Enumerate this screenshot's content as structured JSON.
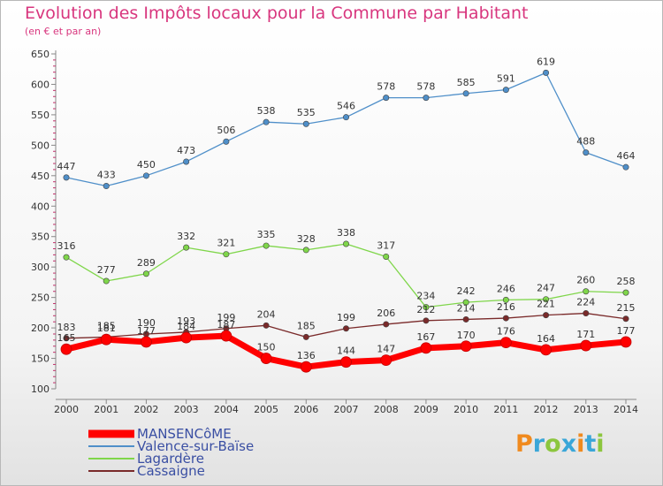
{
  "title": "Evolution des Impôts locaux pour la Commune par Habitant",
  "subtitle": "(en € et par an)",
  "logo": {
    "text": "Proxiti",
    "colors": [
      "#f08a1e",
      "#3aa6d8",
      "#8cc63e",
      "#3aa6d8",
      "#f08a1e",
      "#3aa6d8",
      "#8cc63e"
    ]
  },
  "chart_data": {
    "type": "line",
    "x": [
      "2000",
      "2001",
      "2002",
      "2003",
      "2004",
      "2005",
      "2006",
      "2007",
      "2008",
      "2009",
      "2010",
      "2011",
      "2012",
      "2013",
      "2014"
    ],
    "ylim": [
      100,
      650
    ],
    "yticks": [
      100,
      150,
      200,
      250,
      300,
      350,
      400,
      450,
      500,
      550,
      600,
      650
    ],
    "grid": false,
    "legend_position": "bottom-left",
    "series": [
      {
        "name": "MANSENCôME",
        "color": "#ff0000",
        "emphasis": true,
        "values": [
          165,
          181,
          177,
          184,
          187,
          150,
          136,
          144,
          147,
          167,
          170,
          176,
          164,
          171,
          177
        ]
      },
      {
        "name": "Valence-sur-Baïse",
        "color": "#4f8fc9",
        "emphasis": false,
        "values": [
          447,
          433,
          450,
          473,
          506,
          538,
          535,
          546,
          578,
          578,
          585,
          591,
          619,
          488,
          464
        ]
      },
      {
        "name": "Lagardère",
        "color": "#7fd64a",
        "emphasis": false,
        "values": [
          316,
          277,
          289,
          332,
          321,
          335,
          328,
          338,
          317,
          234,
          242,
          246,
          247,
          260,
          258
        ]
      },
      {
        "name": "Cassaigne",
        "color": "#7a2a2a",
        "emphasis": false,
        "values": [
          183,
          185,
          190,
          193,
          199,
          204,
          185,
          199,
          206,
          212,
          214,
          216,
          221,
          224,
          215
        ]
      }
    ]
  }
}
